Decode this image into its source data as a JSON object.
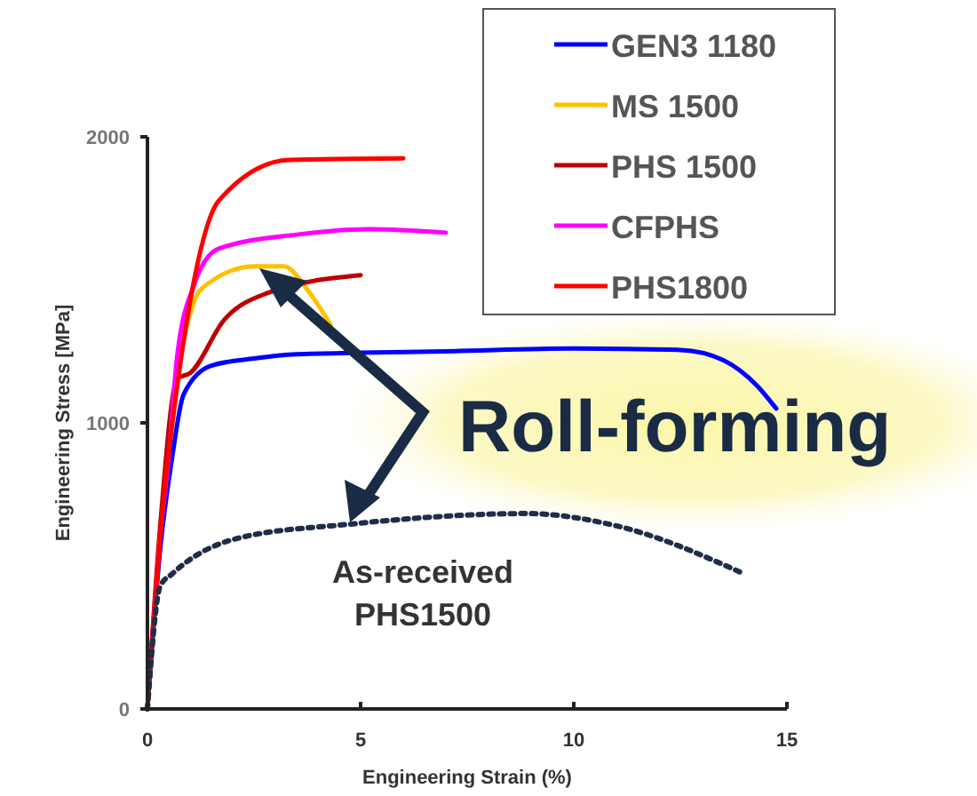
{
  "chart_data": {
    "type": "line",
    "xlabel": "Engineering Strain (%)",
    "ylabel": "Engineering Stress [MPa]",
    "xlim": [
      0,
      15
    ],
    "xticks": [
      0,
      5,
      10,
      15
    ],
    "ylim": [
      0,
      2000
    ],
    "yticks": [
      0,
      1000,
      2000
    ],
    "grid": false,
    "legend": "top right",
    "marker": "none",
    "annotations": [
      "Roll-forming",
      "As-received PHS1500"
    ],
    "series": [
      {
        "name": "GEN3 1180",
        "color": "#0000ff",
        "x": [
          0,
          0.3,
          0.58,
          0.85,
          1.5,
          2.5,
          3.5,
          5,
          7,
          10,
          12.5,
          13.5,
          14.3,
          14.75
        ],
        "values": [
          0,
          560,
          880,
          1100,
          1200,
          1225,
          1240,
          1245,
          1250,
          1260,
          1255,
          1220,
          1130,
          1050
        ]
      },
      {
        "name": "MS 1500",
        "color": "#ffc000",
        "x": [
          0.63,
          1.25,
          2.5,
          3.2,
          3.75,
          4.3
        ],
        "values": [
          1130,
          1466,
          1547,
          1547,
          1466,
          1342
        ]
      },
      {
        "name": "PHS 1500",
        "color": "#c00000",
        "x": [
          0,
          0.3,
          0.7,
          1.0,
          1.8,
          2.8,
          5.0
        ],
        "values": [
          0,
          640,
          1155,
          1174,
          1360,
          1453,
          1516
        ]
      },
      {
        "name": "CFPHS",
        "color": "#ff00ff",
        "x": [
          0,
          0.3,
          0.5,
          0.7,
          1.1,
          1.67,
          3.5,
          5.2,
          7.0
        ],
        "values": [
          0,
          600,
          882,
          1236,
          1484,
          1609,
          1658,
          1677,
          1665
        ]
      },
      {
        "name": "PHS1800",
        "color": "#ff0000",
        "x": [
          0,
          0.37,
          0.7,
          1.1,
          1.67,
          3.33,
          6.0
        ],
        "values": [
          0,
          720,
          1130,
          1503,
          1776,
          1919,
          1925
        ]
      },
      {
        "color": "#1f2d4a",
        "line_style": "dotted",
        "x": [
          0,
          0.3,
          0.58,
          2.1,
          4.75,
          8.9,
          11,
          14.0
        ],
        "values": [
          0,
          430,
          472,
          596,
          646,
          683,
          640,
          472
        ]
      }
    ]
  }
}
